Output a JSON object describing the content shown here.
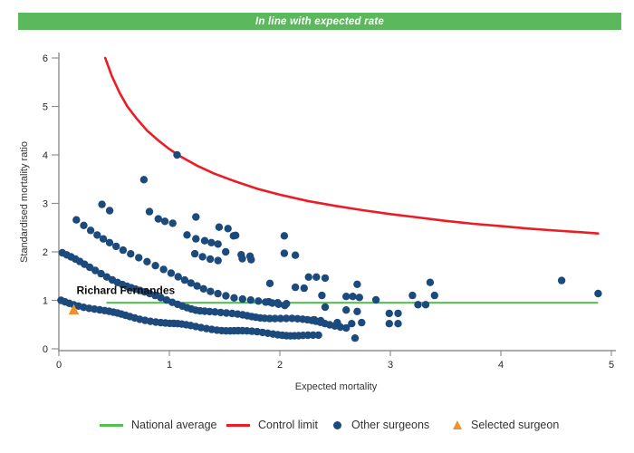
{
  "banner": {
    "text": "In line with expected rate",
    "bg": "#5cb85c",
    "fg": "#ffffff"
  },
  "chart_data": {
    "type": "scatter",
    "title": "",
    "xlabel": "Expected mortality",
    "ylabel": "Standardised mortality ratio",
    "xlim": [
      0,
      5
    ],
    "ylim": [
      0,
      6
    ],
    "x_ticks": [
      0,
      1,
      2,
      3,
      4,
      5
    ],
    "y_ticks": [
      0,
      1,
      2,
      3,
      4,
      5,
      6
    ],
    "grid": false,
    "national_average": {
      "y": 0.95,
      "x_start": 0.43,
      "x_end": 4.88,
      "color": "#53c04f"
    },
    "control_limit": {
      "color": "#ec1c24",
      "points": [
        [
          0.42,
          6.0
        ],
        [
          0.48,
          5.62
        ],
        [
          0.55,
          5.28
        ],
        [
          0.62,
          5.0
        ],
        [
          0.7,
          4.76
        ],
        [
          0.8,
          4.5
        ],
        [
          0.9,
          4.3
        ],
        [
          1.0,
          4.12
        ],
        [
          1.1,
          3.97
        ],
        [
          1.25,
          3.78
        ],
        [
          1.4,
          3.62
        ],
        [
          1.6,
          3.45
        ],
        [
          1.8,
          3.3
        ],
        [
          2.0,
          3.18
        ],
        [
          2.25,
          3.05
        ],
        [
          2.5,
          2.95
        ],
        [
          2.75,
          2.86
        ],
        [
          3.0,
          2.78
        ],
        [
          3.25,
          2.71
        ],
        [
          3.5,
          2.64
        ],
        [
          3.75,
          2.58
        ],
        [
          4.0,
          2.53
        ],
        [
          4.25,
          2.48
        ],
        [
          4.5,
          2.44
        ],
        [
          4.7,
          2.41
        ],
        [
          4.88,
          2.38
        ]
      ]
    },
    "other_surgeons": {
      "color": "#1c4a7c",
      "bands": [
        {
          "n": 56,
          "points": [
            [
              0.02,
              1.0
            ],
            [
              0.25,
              0.86
            ],
            [
              0.5,
              0.73
            ],
            [
              0.75,
              0.62
            ],
            [
              1.0,
              0.52
            ],
            [
              1.25,
              0.45
            ],
            [
              1.5,
              0.39
            ],
            [
              1.75,
              0.34
            ],
            [
              2.0,
              0.3
            ],
            [
              2.35,
              0.26
            ]
          ]
        },
        {
          "n": 58,
          "points": [
            [
              0.02,
              2.0
            ],
            [
              0.25,
              1.7
            ],
            [
              0.5,
              1.42
            ],
            [
              0.75,
              1.18
            ],
            [
              1.0,
              0.97
            ],
            [
              1.25,
              0.81
            ],
            [
              1.5,
              0.72
            ],
            [
              1.8,
              0.66
            ],
            [
              2.1,
              0.62
            ],
            [
              2.35,
              0.55
            ],
            [
              2.6,
              0.45
            ]
          ]
        },
        {
          "n": 30,
          "points": [
            [
              0.14,
              2.68
            ],
            [
              0.35,
              2.36
            ],
            [
              0.6,
              2.02
            ],
            [
              0.85,
              1.72
            ],
            [
              1.1,
              1.45
            ],
            [
              1.35,
              1.22
            ],
            [
              1.6,
              1.05
            ],
            [
              1.85,
              0.95
            ],
            [
              2.05,
              0.88
            ]
          ]
        }
      ],
      "points": [
        [
          0.39,
          2.98
        ],
        [
          0.46,
          2.85
        ],
        [
          0.77,
          3.49
        ],
        [
          1.07,
          4.0
        ],
        [
          0.82,
          2.83
        ],
        [
          0.9,
          2.68
        ],
        [
          0.96,
          2.63
        ],
        [
          1.03,
          2.59
        ],
        [
          1.24,
          2.72
        ],
        [
          1.45,
          2.51
        ],
        [
          1.53,
          2.48
        ],
        [
          1.6,
          2.34
        ],
        [
          1.58,
          2.33
        ],
        [
          2.04,
          2.33
        ],
        [
          1.16,
          2.35
        ],
        [
          1.24,
          2.27
        ],
        [
          1.32,
          2.23
        ],
        [
          1.38,
          2.19
        ],
        [
          1.44,
          2.16
        ],
        [
          1.23,
          1.96
        ],
        [
          1.3,
          1.9
        ],
        [
          1.37,
          1.85
        ],
        [
          1.44,
          1.82
        ],
        [
          1.51,
          2.0
        ],
        [
          1.65,
          1.94
        ],
        [
          1.73,
          1.91
        ],
        [
          1.66,
          1.86
        ],
        [
          1.74,
          1.84
        ],
        [
          2.04,
          1.97
        ],
        [
          2.14,
          1.93
        ],
        [
          2.26,
          1.48
        ],
        [
          2.33,
          1.48
        ],
        [
          2.41,
          1.46
        ],
        [
          1.91,
          1.35
        ],
        [
          2.14,
          1.27
        ],
        [
          2.22,
          1.25
        ],
        [
          2.7,
          1.33
        ],
        [
          3.36,
          1.37
        ],
        [
          2.38,
          1.1
        ],
        [
          2.41,
          0.86
        ],
        [
          2.6,
          1.08
        ],
        [
          2.66,
          1.08
        ],
        [
          2.72,
          1.06
        ],
        [
          2.87,
          1.01
        ],
        [
          3.2,
          1.1
        ],
        [
          3.4,
          1.1
        ],
        [
          3.25,
          0.91
        ],
        [
          3.32,
          0.91
        ],
        [
          2.6,
          0.8
        ],
        [
          2.7,
          0.77
        ],
        [
          2.99,
          0.73
        ],
        [
          3.07,
          0.73
        ],
        [
          2.99,
          0.52
        ],
        [
          3.07,
          0.52
        ],
        [
          2.52,
          0.54
        ],
        [
          2.65,
          0.52
        ],
        [
          2.74,
          0.54
        ],
        [
          2.31,
          0.6
        ],
        [
          2.37,
          0.58
        ],
        [
          2.68,
          0.22
        ],
        [
          1.9,
          0.97
        ],
        [
          1.98,
          0.95
        ],
        [
          2.06,
          0.93
        ],
        [
          4.55,
          1.41
        ],
        [
          4.88,
          1.14
        ]
      ]
    },
    "selected_surgeon": {
      "name": "Richard Fernandes",
      "x": 0.135,
      "y": 0.81,
      "color": "#f0912d"
    }
  },
  "legend": {
    "items": [
      {
        "label": "National average",
        "marker": "line",
        "color": "#53c04f"
      },
      {
        "label": "Control limit",
        "marker": "line",
        "color": "#ec1c24"
      },
      {
        "label": "Other surgeons",
        "marker": "dot",
        "color": "#1c4a7c"
      },
      {
        "label": "Selected surgeon",
        "marker": "triangle",
        "color": "#f0912d"
      }
    ]
  }
}
